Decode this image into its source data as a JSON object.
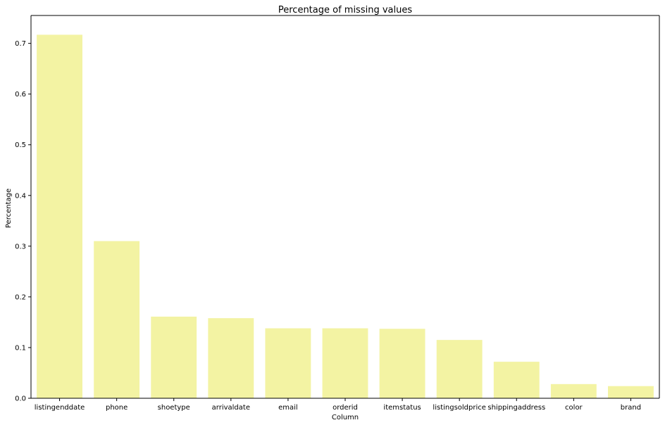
{
  "chart_data": {
    "type": "bar",
    "title": "Percentage of missing values",
    "xlabel": "Column",
    "ylabel": "Percentage",
    "categories": [
      "listingenddate",
      "phone",
      "shoetype",
      "arrivaldate",
      "email",
      "orderid",
      "itemstatus",
      "listingsoldprice",
      "shippingaddress",
      "color",
      "brand"
    ],
    "values": [
      0.717,
      0.31,
      0.161,
      0.158,
      0.138,
      0.138,
      0.137,
      0.115,
      0.072,
      0.028,
      0.024
    ],
    "ylim": [
      0.0,
      0.755
    ],
    "yticks": [
      "0.0",
      "0.1",
      "0.2",
      "0.3",
      "0.4",
      "0.5",
      "0.6",
      "0.7"
    ],
    "bar_color": "#f3f3a3",
    "grid": false
  }
}
